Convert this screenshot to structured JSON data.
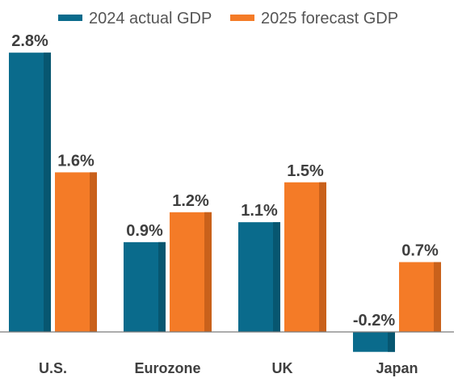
{
  "chart_data": {
    "type": "bar",
    "categories": [
      "U.S.",
      "Eurozone",
      "UK",
      "Japan"
    ],
    "series": [
      {
        "name": "2024 actual GDP",
        "values": [
          2.8,
          0.9,
          1.1,
          -0.2
        ],
        "labels": [
          "2.8%",
          "0.9%",
          "1.1%",
          "-0.2%"
        ],
        "color": "#0a6b8c",
        "shade_color": "#075670"
      },
      {
        "name": "2025 forecast GDP",
        "values": [
          1.6,
          1.2,
          1.5,
          0.7
        ],
        "labels": [
          "1.6%",
          "1.2%",
          "1.5%",
          "0.7%"
        ],
        "color": "#f47b27",
        "shade_color": "#c9611b"
      }
    ],
    "legend_position": "top",
    "grid": false,
    "baseline_color": "#7a7a7a"
  }
}
